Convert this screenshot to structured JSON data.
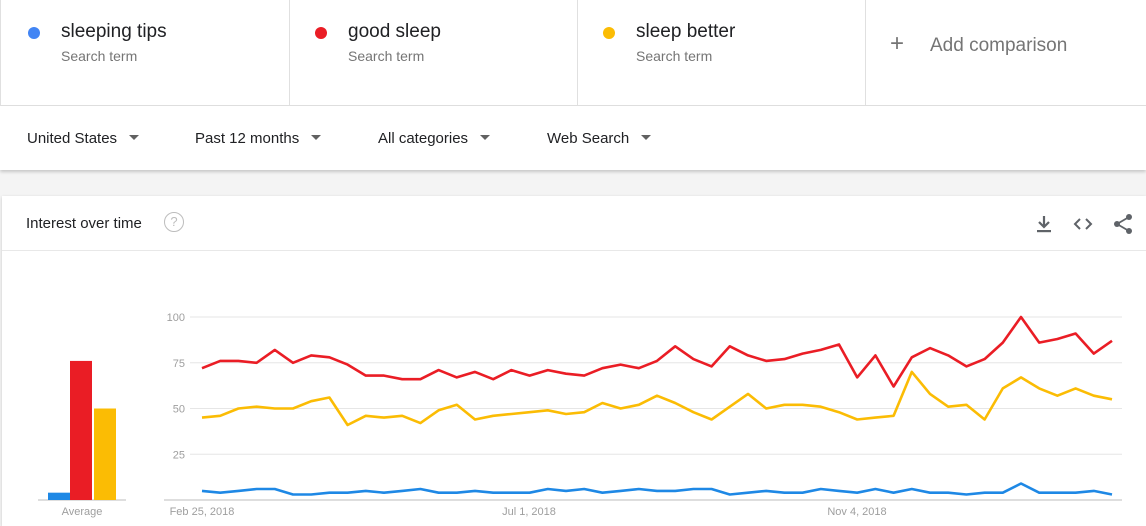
{
  "terms": [
    {
      "name": "sleeping tips",
      "sub": "Search term",
      "color": "#4285f4"
    },
    {
      "name": "good sleep",
      "sub": "Search term",
      "color": "#ea1d25"
    },
    {
      "name": "sleep better",
      "sub": "Search term",
      "color": "#fbbc04"
    }
  ],
  "add_comparison": {
    "icon": "plus-icon",
    "label": "Add comparison"
  },
  "filters": {
    "region": "United States",
    "time": "Past 12 months",
    "category": "All categories",
    "search_type": "Web Search"
  },
  "card": {
    "title": "Interest over time",
    "help_icon": "question-icon",
    "icons": [
      "download-icon",
      "embed-code-icon",
      "share-icon"
    ]
  },
  "chart_data": {
    "type": "line",
    "x_ticks": [
      "Feb 25, 2018",
      "Jul 1, 2018",
      "Nov 4, 2018"
    ],
    "y_ticks": [
      25,
      50,
      75,
      100
    ],
    "ylim": [
      0,
      100
    ],
    "average_label": "Average",
    "averages": [
      {
        "name": "sleeping tips",
        "value": 4
      },
      {
        "name": "good sleep",
        "value": 76
      },
      {
        "name": "sleep better",
        "value": 50
      }
    ],
    "series": [
      {
        "name": "good sleep",
        "color": "#ea1d25",
        "values": [
          72,
          76,
          76,
          75,
          82,
          75,
          79,
          78,
          74,
          68,
          68,
          66,
          66,
          71,
          67,
          70,
          66,
          71,
          68,
          71,
          69,
          68,
          72,
          74,
          72,
          76,
          84,
          77,
          73,
          84,
          79,
          76,
          77,
          80,
          82,
          85,
          67,
          79,
          62,
          78,
          83,
          79,
          73,
          77,
          86,
          100,
          86,
          88,
          91,
          80,
          87
        ]
      },
      {
        "name": "sleep better",
        "color": "#fbbc04",
        "values": [
          45,
          46,
          50,
          51,
          50,
          50,
          54,
          56,
          41,
          46,
          45,
          46,
          42,
          49,
          52,
          44,
          46,
          47,
          48,
          49,
          47,
          48,
          53,
          50,
          52,
          57,
          53,
          48,
          44,
          51,
          58,
          50,
          52,
          52,
          51,
          48,
          44,
          45,
          46,
          70,
          58,
          51,
          52,
          44,
          61,
          67,
          61,
          57,
          61,
          57,
          55
        ]
      },
      {
        "name": "sleeping tips",
        "color": "#1e88e5",
        "values": [
          5,
          4,
          5,
          6,
          6,
          3,
          3,
          4,
          4,
          5,
          4,
          5,
          6,
          4,
          4,
          5,
          4,
          4,
          4,
          6,
          5,
          6,
          4,
          5,
          6,
          5,
          5,
          6,
          6,
          3,
          4,
          5,
          4,
          4,
          6,
          5,
          4,
          6,
          4,
          6,
          4,
          4,
          3,
          4,
          4,
          9,
          4,
          4,
          4,
          5,
          3
        ]
      }
    ]
  }
}
